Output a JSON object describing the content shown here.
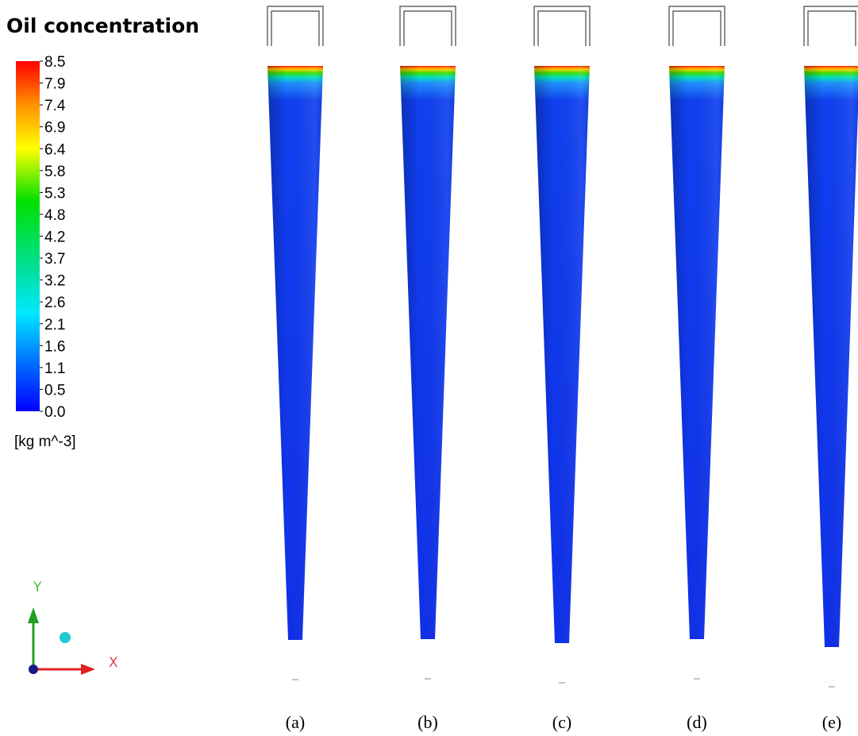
{
  "title": "Oil concentration",
  "legend": {
    "ticks": [
      "8.5",
      "7.9",
      "7.4",
      "6.9",
      "6.4",
      "5.8",
      "5.3",
      "4.8",
      "4.2",
      "3.7",
      "3.2",
      "2.6",
      "2.1",
      "1.6",
      "1.1",
      "0.5",
      "0.0"
    ],
    "unit": "[kg m^-3]"
  },
  "axes": {
    "y": "Y",
    "x": "X"
  },
  "panels": [
    "(a)",
    "(b)",
    "(c)",
    "(d)",
    "(e)"
  ]
}
